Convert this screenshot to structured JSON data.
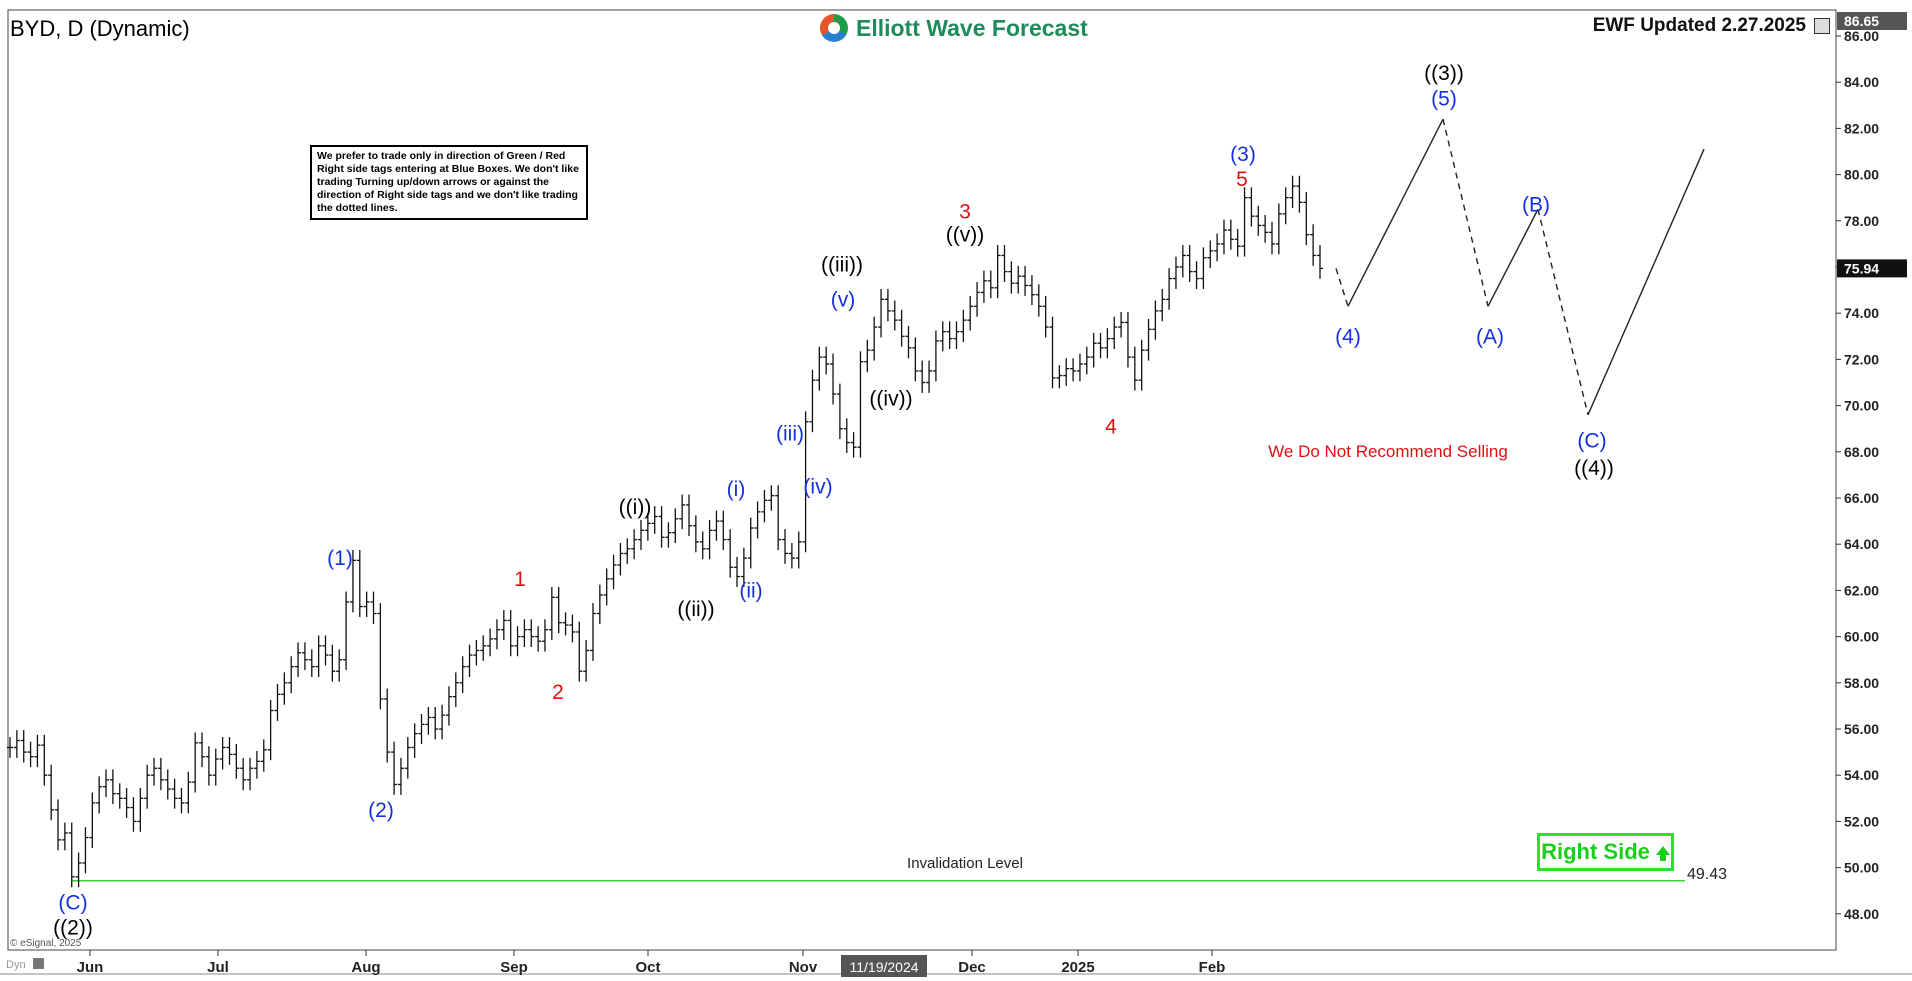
{
  "header": {
    "symbol_title": "BYD, D (Dynamic)",
    "brand": "Elliott Wave Forecast",
    "updated": "EWF Updated 2.27.2025",
    "note": "We prefer to trade only in direction of Green / Red Right side tags entering at Blue Boxes. We don't like trading Turning up/down arrows or against the direction of Right side tags and we don't like trading the dotted lines.",
    "right_side_label": "Right Side",
    "no_sell_text": "We Do Not Recommend Selling",
    "invalidation_label": "Invalidation Level",
    "copyright": "© eSignal, 2025",
    "corner_tag": "Dyn"
  },
  "chart_data": {
    "type": "line",
    "title": "BYD, D (Dynamic)",
    "ylim": [
      46.5,
      87
    ],
    "y_ticks": [
      "48.00",
      "50.00",
      "52.00",
      "54.00",
      "56.00",
      "58.00",
      "60.00",
      "62.00",
      "64.00",
      "66.00",
      "68.00",
      "70.00",
      "72.00",
      "74.00",
      "76.00",
      "78.00",
      "80.00",
      "82.00",
      "84.00",
      "86.00"
    ],
    "x_ticks": [
      "Jun",
      "Jul",
      "Aug",
      "Sep",
      "Oct",
      "Nov",
      "Dec",
      "2025",
      "Feb"
    ],
    "cursor_date_label": "11/19/2024",
    "price_labels": {
      "high": "86.65",
      "last": "75.94",
      "invalidation": "49.43"
    },
    "grid": false,
    "series": [
      {
        "values": [
          55.2,
          55.5,
          55.0,
          54.8,
          55.3,
          54.0,
          52.5,
          51.2,
          51.5,
          49.6,
          50.2,
          51.3,
          52.8,
          53.5,
          53.8,
          53.2,
          53.0,
          52.6,
          52.0,
          53.0,
          54.0,
          54.3,
          53.8,
          53.4,
          53.0,
          52.8,
          53.7,
          55.4,
          54.8,
          54.0,
          54.7,
          55.2,
          54.9,
          54.3,
          53.8,
          54.3,
          54.6,
          55.1,
          56.8,
          57.5,
          58.0,
          58.7,
          59.3,
          59.0,
          58.7,
          59.6,
          59.2,
          58.5,
          59.0,
          61.5,
          63.3,
          61.3,
          61.5,
          61.0,
          57.3,
          55.0,
          53.6,
          54.3,
          55.2,
          55.8,
          56.2,
          56.5,
          56.0,
          56.6,
          57.4,
          58.0,
          58.7,
          59.2,
          59.4,
          59.6,
          59.9,
          60.3,
          60.7,
          59.6,
          60.0,
          60.3,
          60.0,
          59.8,
          60.3,
          61.7,
          60.6,
          60.5,
          60.2,
          58.5,
          59.4,
          61.0,
          61.8,
          62.5,
          63.1,
          63.6,
          63.8,
          64.2,
          64.6,
          64.9,
          65.2,
          64.3,
          64.5,
          65.1,
          65.7,
          64.8,
          64.1,
          63.8,
          64.6,
          65.0,
          64.2,
          63.0,
          62.6,
          63.4,
          64.7,
          65.4,
          65.9,
          66.1,
          64.2,
          63.6,
          63.4,
          64.1,
          69.3,
          71.1,
          72.1,
          71.8,
          70.5,
          69.0,
          68.4,
          68.2,
          71.9,
          72.4,
          73.4,
          74.6,
          74.1,
          73.7,
          73.0,
          72.5,
          71.5,
          71.0,
          71.5,
          72.8,
          73.2,
          72.9,
          73.2,
          73.7,
          74.3,
          74.9,
          75.4,
          75.1,
          76.5,
          75.8,
          75.3,
          75.6,
          75.2,
          74.8,
          74.3,
          73.4,
          71.2,
          71.3,
          71.6,
          71.5,
          71.8,
          72.1,
          72.7,
          72.5,
          72.9,
          73.4,
          73.6,
          72.1,
          71.1,
          72.4,
          73.3,
          74.1,
          74.6,
          75.5,
          76.0,
          76.5,
          75.8,
          75.5,
          76.4,
          76.7,
          77.0,
          77.6,
          77.2,
          76.9,
          79.0,
          78.2,
          77.8,
          77.5,
          77.0,
          78.3,
          79.0,
          79.5,
          78.8,
          77.4,
          76.5,
          75.94
        ]
      },
      {
        "values": [
          75.94,
          74.3,
          82.4,
          74.3,
          78.5,
          69.6,
          81.1
        ]
      }
    ],
    "invalidation_level": 49.43,
    "wave_labels": [
      {
        "text": "((2))",
        "color": "#000000"
      },
      {
        "text": "(C)",
        "color": "#1530e0"
      },
      {
        "text": "(1)",
        "color": "#1530e0"
      },
      {
        "text": "(2)",
        "color": "#1530e0"
      },
      {
        "text": "1",
        "color": "#e01010"
      },
      {
        "text": "2",
        "color": "#e01010"
      },
      {
        "text": "((i))",
        "color": "#000000"
      },
      {
        "text": "((ii))",
        "color": "#000000"
      },
      {
        "text": "(i)",
        "color": "#1530e0"
      },
      {
        "text": "(ii)",
        "color": "#1530e0"
      },
      {
        "text": "(iii)",
        "color": "#1530e0"
      },
      {
        "text": "(iv)",
        "color": "#1530e0"
      },
      {
        "text": "(v)",
        "color": "#1530e0"
      },
      {
        "text": "((iii))",
        "color": "#000000"
      },
      {
        "text": "((iv))",
        "color": "#000000"
      },
      {
        "text": "3",
        "color": "#e01010"
      },
      {
        "text": "((v))",
        "color": "#000000"
      },
      {
        "text": "4",
        "color": "#e01010"
      },
      {
        "text": "(3)",
        "color": "#1530e0"
      },
      {
        "text": "5",
        "color": "#e01010"
      },
      {
        "text": "(4)",
        "color": "#1530e0"
      },
      {
        "text": "((3))",
        "color": "#000000"
      },
      {
        "text": "(5)",
        "color": "#1530e0"
      },
      {
        "text": "(A)",
        "color": "#1530e0"
      },
      {
        "text": "(B)",
        "color": "#1530e0"
      },
      {
        "text": "(C)",
        "color": "#1530e0"
      },
      {
        "text": "((4))",
        "color": "#000000"
      }
    ]
  },
  "colors": {
    "wave_blue": "#1530e0",
    "wave_red": "#e01010",
    "invalidation_green": "#3ad43a",
    "right_side_green": "#18d018",
    "brand_green": "#1f8b5a"
  }
}
